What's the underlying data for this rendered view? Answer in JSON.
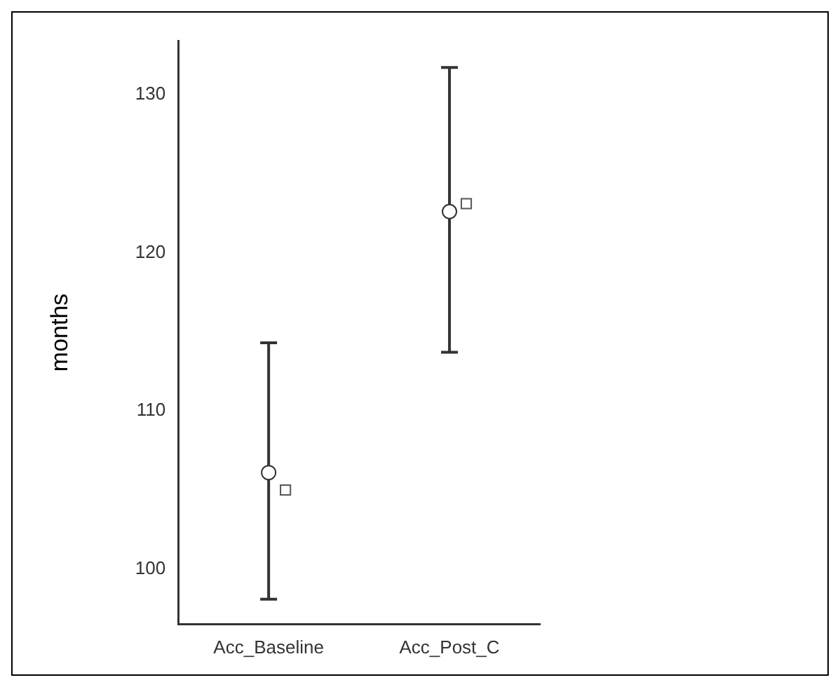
{
  "chart_data": {
    "type": "scatter",
    "ylabel": "months",
    "categories": [
      "Acc_Baseline",
      "Acc_Post_C"
    ],
    "series": [
      {
        "color": "#333333",
        "marker": "circle",
        "values": [
          106.1,
          122.6
        ],
        "errors": [
          [
            98.1,
            114.3
          ],
          [
            113.7,
            131.7
          ]
        ]
      },
      {
        "color": "#555555",
        "marker": "square",
        "values": [
          105.0,
          123.1
        ]
      }
    ],
    "ylim": [
      96.5,
      133.4
    ],
    "yticks": [
      100,
      110,
      120,
      130
    ],
    "grid": false,
    "legend": false
  }
}
